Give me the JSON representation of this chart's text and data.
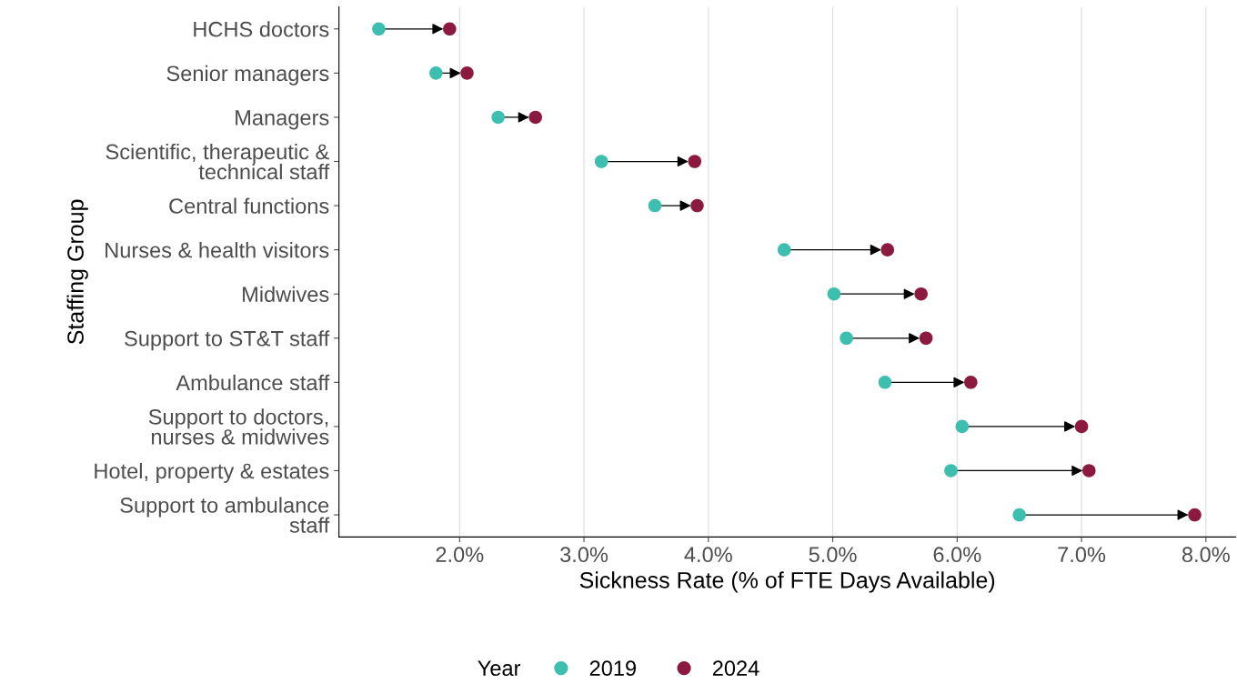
{
  "chart_data": {
    "type": "scatter",
    "orientation": "horizontal",
    "xlabel": "Sickness Rate (% of FTE Days Available)",
    "ylabel": "Staffing Group",
    "legend_title": "Year",
    "legend": "bottom",
    "grid": "x",
    "marker": "circle",
    "categories": [
      "HCHS doctors",
      "Senior managers",
      "Managers",
      "Scientific, therapeutic &\ntechnical staff",
      "Central functions",
      "Nurses & health visitors",
      "Midwives",
      "Support to ST&T staff",
      "Ambulance staff",
      "Support to doctors,\nnurses & midwives",
      "Hotel, property & estates",
      "Support to ambulance\nstaff"
    ],
    "series": [
      {
        "name": "2019",
        "color": "#3dbfb0",
        "values": [
          1.35,
          1.81,
          2.31,
          3.14,
          3.57,
          4.61,
          5.01,
          5.11,
          5.42,
          6.04,
          5.95,
          6.5
        ]
      },
      {
        "name": "2024",
        "color": "#8b1a3e",
        "values": [
          1.92,
          2.06,
          2.61,
          3.89,
          3.91,
          5.44,
          5.71,
          5.75,
          6.11,
          7.0,
          7.06,
          7.91
        ]
      }
    ],
    "xlim": [
      1.03,
      8.24
    ],
    "xticks": [
      {
        "value": 2,
        "label": "2.0%"
      },
      {
        "value": 3,
        "label": "3.0%"
      },
      {
        "value": 4,
        "label": "4.0%"
      },
      {
        "value": 5,
        "label": "5.0%"
      },
      {
        "value": 6,
        "label": "6.0%"
      },
      {
        "value": 7,
        "label": "7.0%"
      },
      {
        "value": 8,
        "label": "8.0%"
      }
    ]
  }
}
